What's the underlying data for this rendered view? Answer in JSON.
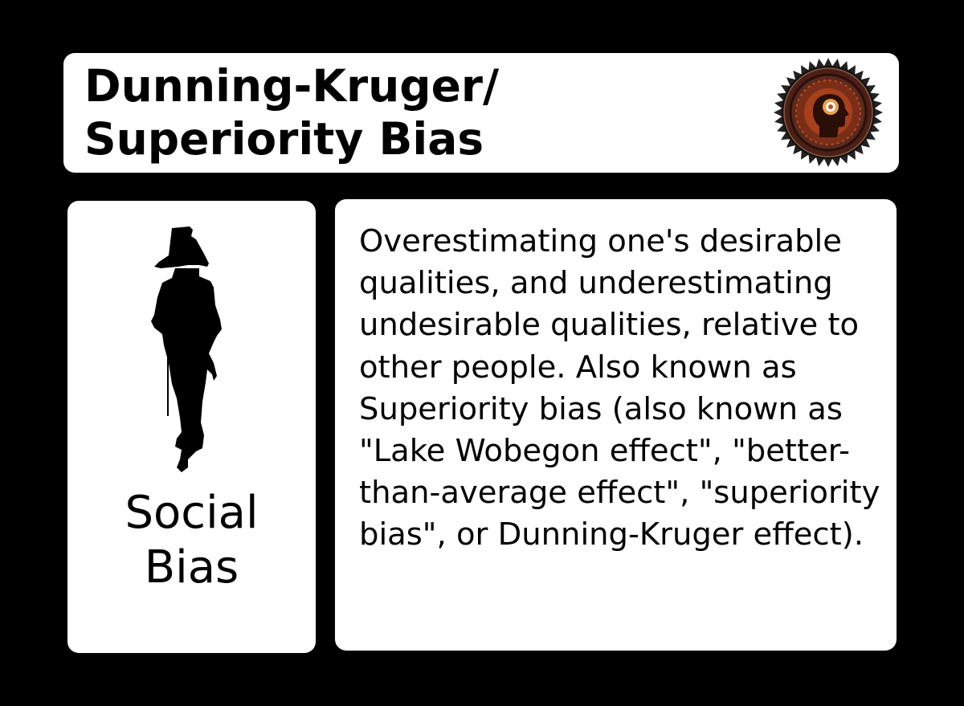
{
  "title": "Dunning-Kruger/\nSuperiority Bias",
  "category": {
    "line1": "Social",
    "line2": "Bias"
  },
  "description": "Overestimating one's desirable qualities, and underestimating undesirable qualities, relative to other people. Also known as Superiority bias (also known as \"Lake Wobegon effect\", \"better-than-average effect\", \"superiority bias\", or Dunning-Kruger effect).",
  "icons": {
    "badge": "brain-seal-icon",
    "figure": "person-silhouette-icon"
  },
  "colors": {
    "background": "#000000",
    "card": "#ffffff",
    "text": "#000000",
    "badge_ring": "#3a1a14",
    "badge_accent": "#c0501e"
  }
}
